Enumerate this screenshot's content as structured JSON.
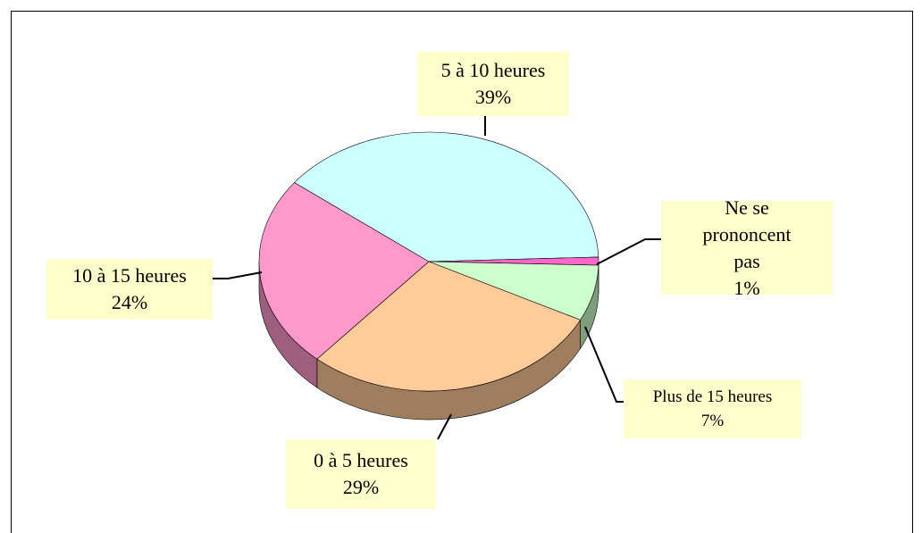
{
  "chart_data": {
    "type": "pie",
    "categories": [
      "5 à 10 heures",
      "Ne se prononcent pas",
      "Plus de 15 heures",
      "0 à 5 heures",
      "10 à 15 heures"
    ],
    "values": [
      39,
      1,
      7,
      29,
      24
    ],
    "value_labels": [
      "39%",
      "1%",
      "7%",
      "29%",
      "24%"
    ],
    "colors": [
      "#ccffff",
      "#ff66cc",
      "#ccffcc",
      "#ffcc99",
      "#ff99cc"
    ]
  }
}
